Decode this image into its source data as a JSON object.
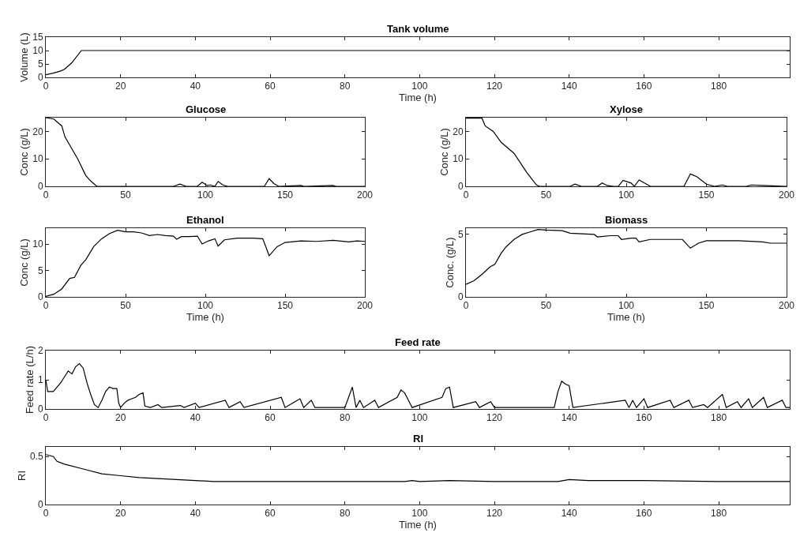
{
  "chart_data": [
    {
      "type": "line",
      "title": "Tank volume",
      "xlabel": "Time (h)",
      "ylabel": "Volume (L)",
      "color": "#000000",
      "xlim": [
        0,
        199
      ],
      "ylim": [
        0,
        15
      ],
      "xticks": [
        0,
        20,
        40,
        60,
        80,
        100,
        120,
        140,
        160,
        180
      ],
      "yticks": [
        0,
        5,
        10,
        15
      ],
      "x": [
        0,
        2,
        4,
        5,
        7,
        9.5,
        199
      ],
      "values": [
        1,
        1.6,
        2.4,
        3,
        5.5,
        10,
        10
      ]
    },
    {
      "type": "line",
      "title": "Glucose",
      "ylabel": "Conc (g/L)",
      "color": "#000000",
      "xlim": [
        0,
        200
      ],
      "ylim": [
        0,
        25
      ],
      "xticks": [
        0,
        50,
        100,
        150,
        200
      ],
      "yticks": [
        0,
        10,
        20
      ],
      "x": [
        0,
        5,
        8,
        10,
        12,
        15,
        20,
        25,
        28,
        32,
        80,
        84,
        88,
        95,
        98,
        101,
        103,
        106,
        108,
        111,
        114,
        137,
        140,
        143,
        146,
        160,
        162,
        180,
        182,
        200
      ],
      "values": [
        25,
        24.5,
        23,
        22,
        18,
        15,
        10,
        4,
        2,
        0,
        0,
        0.8,
        0,
        0,
        1.5,
        0.3,
        0.5,
        0,
        1.8,
        0.5,
        0,
        0,
        2.8,
        1,
        0,
        0.3,
        0,
        0.3,
        0,
        0
      ]
    },
    {
      "type": "line",
      "title": "Xylose",
      "ylabel": "Conc (g/L)",
      "color": "#000000",
      "xlim": [
        0,
        200
      ],
      "ylim": [
        0,
        25
      ],
      "xticks": [
        0,
        50,
        100,
        150,
        200
      ],
      "yticks": [
        0,
        10,
        20
      ],
      "x": [
        0,
        10,
        12,
        17,
        22,
        30,
        38,
        44,
        46,
        65,
        68,
        72,
        82,
        85,
        88,
        92,
        95,
        98,
        103,
        105,
        108,
        112,
        115,
        136,
        140,
        144,
        150,
        155,
        160,
        163,
        175,
        178,
        185,
        200
      ],
      "values": [
        24.8,
        24.8,
        22,
        20,
        16,
        12,
        5,
        0.5,
        0,
        0,
        0.8,
        0,
        0,
        1.2,
        0.3,
        0,
        0,
        2.2,
        1.2,
        0,
        2.3,
        1,
        0,
        0,
        4.5,
        3.5,
        0.8,
        0,
        0.5,
        0,
        0,
        0.5,
        0.3,
        0
      ]
    },
    {
      "type": "line",
      "title": "Ethanol",
      "xlabel": "Time (h)",
      "ylabel": "Conc (g/L)",
      "color": "#000000",
      "xlim": [
        0,
        200
      ],
      "ylim": [
        0,
        13
      ],
      "xticks": [
        0,
        50,
        100,
        150,
        200
      ],
      "yticks": [
        0,
        5,
        10
      ],
      "x": [
        0,
        5,
        10,
        15,
        18,
        22,
        25,
        30,
        35,
        40,
        45,
        50,
        55,
        60,
        65,
        70,
        75,
        80,
        82,
        85,
        90,
        95,
        98,
        102,
        106,
        108,
        112,
        120,
        130,
        136,
        140,
        145,
        150,
        160,
        170,
        180,
        190,
        195,
        200
      ],
      "values": [
        0.1,
        0.5,
        1.5,
        3.5,
        3.7,
        6,
        7,
        9.5,
        11,
        12,
        12.6,
        12.3,
        12.3,
        12.1,
        11.6,
        11.8,
        11.6,
        11.5,
        10.9,
        11.4,
        11.4,
        11.5,
        10,
        10.6,
        11,
        9.6,
        10.8,
        11.1,
        11.1,
        11,
        7.8,
        9.5,
        10.3,
        10.6,
        10.5,
        10.7,
        10.4,
        10.6,
        10.5
      ]
    },
    {
      "type": "line",
      "title": "Biomass",
      "xlabel": "Time (h)",
      "ylabel": "Conc. (g/L)",
      "color": "#000000",
      "xlim": [
        0,
        200
      ],
      "ylim": [
        0,
        5.5
      ],
      "xticks": [
        0,
        50,
        100,
        150,
        200
      ],
      "yticks": [
        0,
        5
      ],
      "x": [
        0,
        5,
        10,
        15,
        18,
        22,
        25,
        30,
        35,
        40,
        45,
        50,
        60,
        65,
        80,
        82,
        90,
        95,
        97,
        103,
        106,
        108,
        115,
        135,
        140,
        145,
        150,
        170,
        185,
        190,
        200
      ],
      "values": [
        1,
        1.3,
        1.8,
        2.4,
        2.6,
        3.5,
        4,
        4.6,
        5,
        5.2,
        5.4,
        5.35,
        5.3,
        5.1,
        5,
        4.8,
        4.9,
        4.9,
        4.6,
        4.7,
        4.7,
        4.4,
        4.6,
        4.6,
        3.9,
        4.3,
        4.5,
        4.5,
        4.4,
        4.3,
        4.3
      ]
    },
    {
      "type": "line",
      "title": "Feed rate",
      "ylabel": "Feed rate (L/h)",
      "color": "#000000",
      "xlim": [
        0,
        199
      ],
      "ylim": [
        0,
        2
      ],
      "xticks": [
        0,
        20,
        40,
        60,
        80,
        100,
        120,
        140,
        160,
        180
      ],
      "yticks": [
        0,
        1,
        2
      ],
      "x": [
        0,
        0.5,
        2,
        4,
        5,
        6,
        7,
        8,
        9,
        10,
        11,
        12,
        13,
        14,
        15,
        16,
        17,
        18,
        19,
        19.5,
        20,
        21,
        22,
        23,
        24,
        25,
        26,
        26.5,
        28,
        30,
        31,
        36,
        37,
        40,
        41,
        48,
        49,
        52,
        53,
        63,
        64,
        68,
        69,
        71,
        72,
        80,
        82,
        83,
        84,
        85,
        88,
        89,
        94,
        95,
        96,
        97,
        98,
        106,
        107,
        108,
        109,
        115,
        116,
        119,
        120,
        136,
        137,
        138,
        139,
        140,
        141,
        155,
        156,
        157,
        158,
        160,
        161,
        167,
        168,
        172,
        173,
        176,
        177,
        181,
        182,
        185,
        186,
        188,
        189,
        192,
        193,
        197,
        198,
        199
      ],
      "values": [
        1,
        0.6,
        0.6,
        0.9,
        1.1,
        1.3,
        1.2,
        1.45,
        1.55,
        1.4,
        0.9,
        0.5,
        0.15,
        0.05,
        0.3,
        0.6,
        0.75,
        0.7,
        0.7,
        0.2,
        0.05,
        0.2,
        0.3,
        0.35,
        0.4,
        0.5,
        0.55,
        0.1,
        0.05,
        0.15,
        0.05,
        0.12,
        0.05,
        0.2,
        0.05,
        0.3,
        0.05,
        0.25,
        0.05,
        0.4,
        0.05,
        0.35,
        0.05,
        0.3,
        0.05,
        0.05,
        0.75,
        0.05,
        0.3,
        0.05,
        0.3,
        0.05,
        0.4,
        0.65,
        0.55,
        0.3,
        0.05,
        0.4,
        0.7,
        0.75,
        0.05,
        0.25,
        0.05,
        0.25,
        0.05,
        0.05,
        0.6,
        0.95,
        0.85,
        0.8,
        0.05,
        0.3,
        0.05,
        0.3,
        0.05,
        0.35,
        0.05,
        0.3,
        0.05,
        0.3,
        0.05,
        0.15,
        0.05,
        0.5,
        0.05,
        0.25,
        0.05,
        0.35,
        0.05,
        0.4,
        0.05,
        0.3,
        0.05,
        0.05
      ]
    },
    {
      "type": "line",
      "title": "RI",
      "xlabel": "Time (h)",
      "ylabel": "RI",
      "color": "#000000",
      "xlim": [
        0,
        199
      ],
      "ylim": [
        0,
        0.6
      ],
      "xticks": [
        0,
        20,
        40,
        60,
        80,
        100,
        120,
        140,
        160,
        180
      ],
      "yticks": [
        0,
        0.5
      ],
      "x": [
        0,
        2,
        3,
        5,
        10,
        15,
        20,
        25,
        30,
        40,
        45,
        60,
        80,
        96,
        98,
        100,
        108,
        120,
        137,
        140,
        145,
        160,
        180,
        199
      ],
      "values": [
        0.52,
        0.5,
        0.45,
        0.42,
        0.37,
        0.32,
        0.3,
        0.28,
        0.27,
        0.25,
        0.24,
        0.24,
        0.24,
        0.24,
        0.25,
        0.24,
        0.25,
        0.24,
        0.24,
        0.26,
        0.25,
        0.25,
        0.24,
        0.24
      ]
    }
  ]
}
